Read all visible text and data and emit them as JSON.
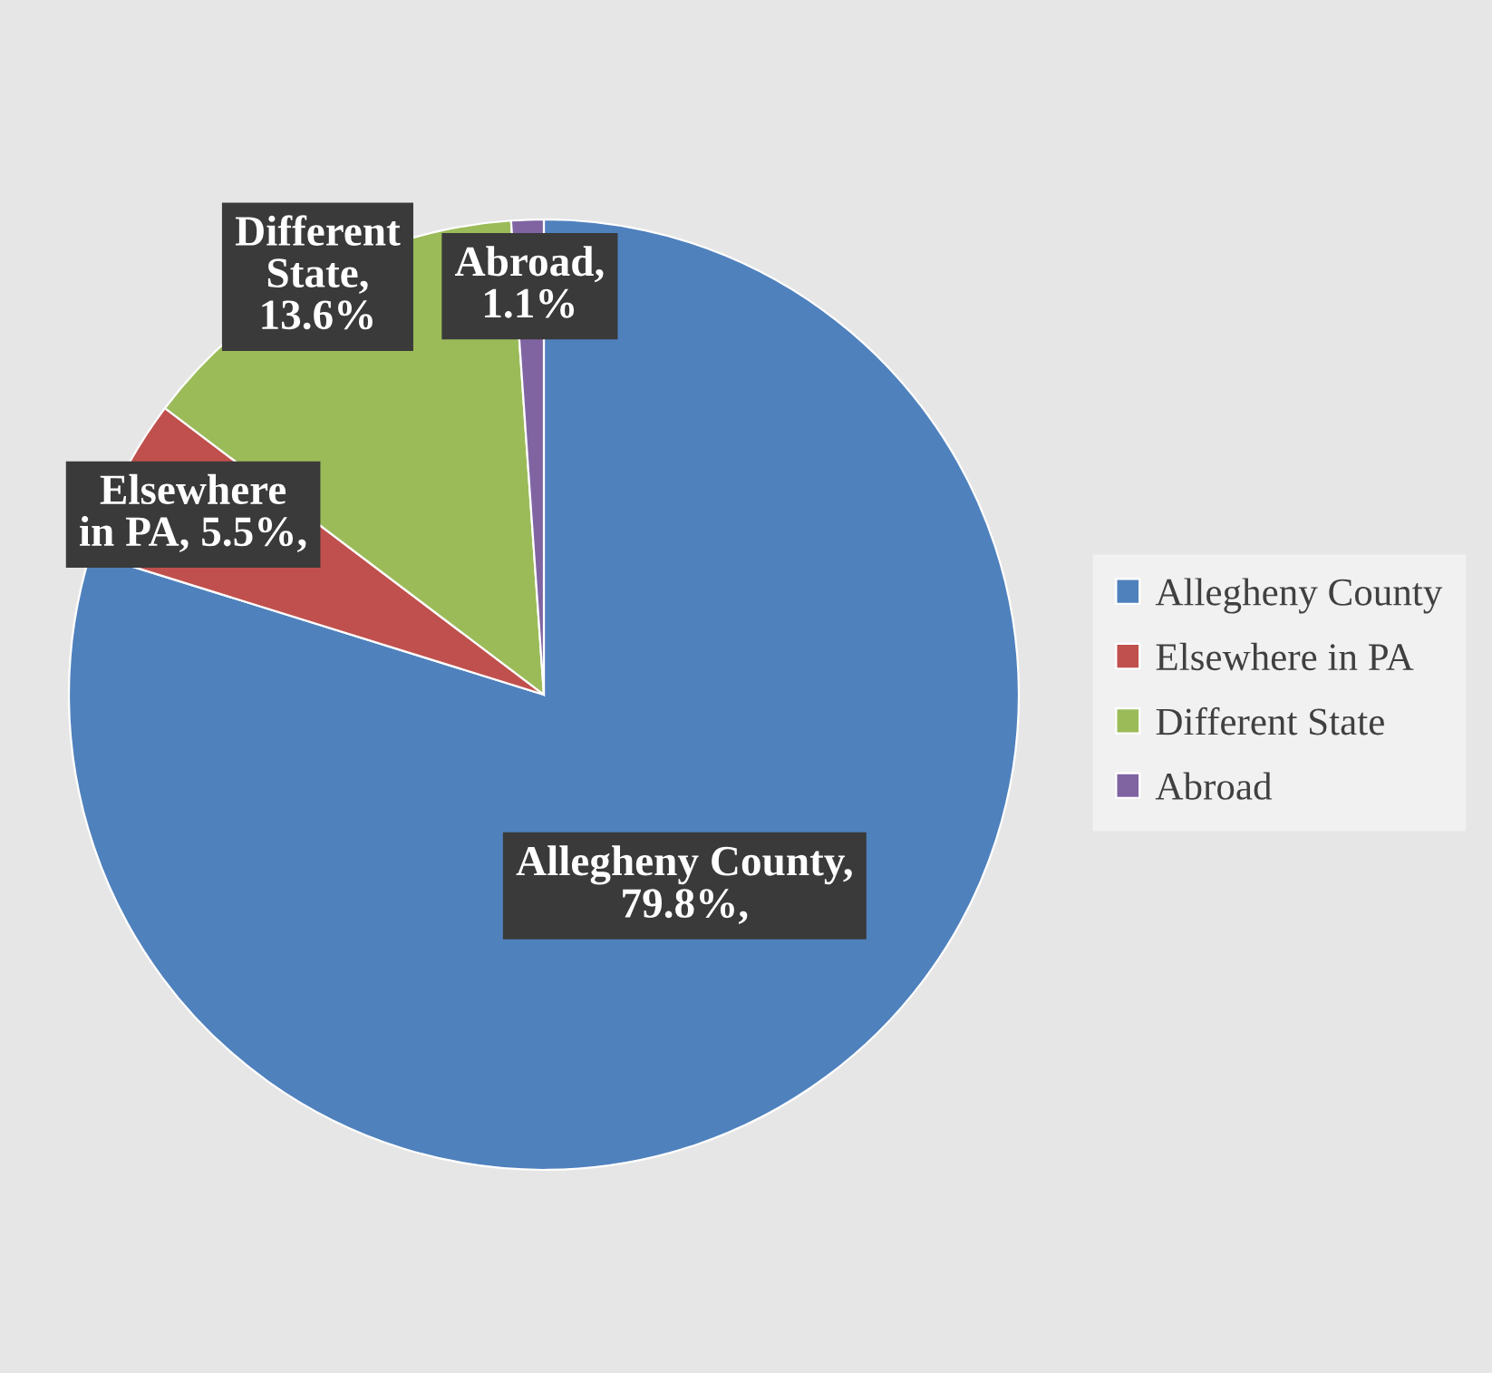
{
  "chart_data": {
    "type": "pie",
    "categories": [
      "Allegheny County",
      "Elsewhere in PA",
      "Different State",
      "Abroad"
    ],
    "values": [
      79.8,
      5.5,
      13.6,
      1.1
    ],
    "colors": [
      "#4f81bd",
      "#c0504d",
      "#9bbb59",
      "#8064a2"
    ],
    "value_labels": [
      "Allegheny County,\n79.8%,",
      "Elsewhere\nin PA, 5.5%,",
      "Different\nState,\n13.6%",
      "Abroad,\n1.1%"
    ],
    "legend": "right"
  }
}
